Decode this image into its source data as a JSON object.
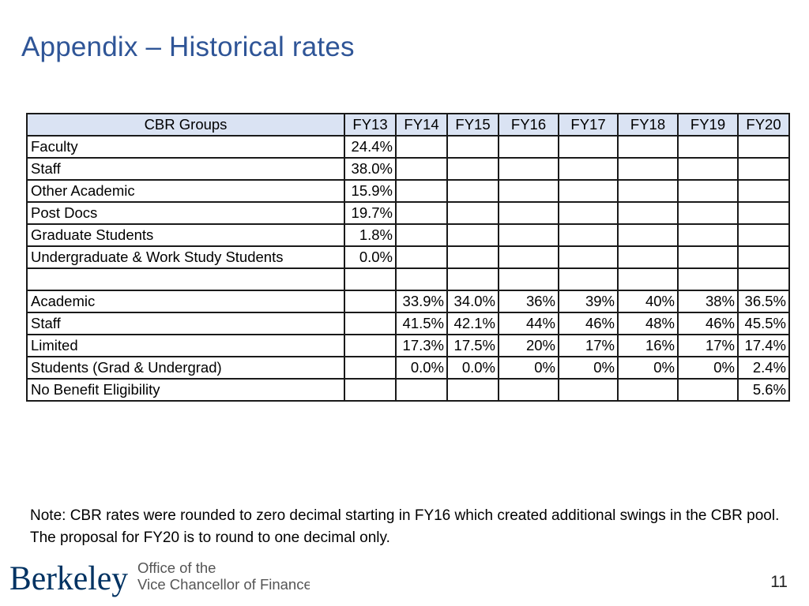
{
  "title": "Appendix – Historical rates",
  "table": {
    "headers": [
      "CBR Groups",
      "FY13",
      "FY14",
      "FY15",
      "FY16",
      "FY17",
      "FY18",
      "FY19",
      "FY20"
    ],
    "rows": [
      [
        "Faculty",
        "24.4%",
        "",
        "",
        "",
        "",
        "",
        "",
        ""
      ],
      [
        "Staff",
        "38.0%",
        "",
        "",
        "",
        "",
        "",
        "",
        ""
      ],
      [
        "Other Academic",
        "15.9%",
        "",
        "",
        "",
        "",
        "",
        "",
        ""
      ],
      [
        "Post Docs",
        "19.7%",
        "",
        "",
        "",
        "",
        "",
        "",
        ""
      ],
      [
        "Graduate Students",
        "1.8%",
        "",
        "",
        "",
        "",
        "",
        "",
        ""
      ],
      [
        "Undergraduate & Work Study Students",
        "0.0%",
        "",
        "",
        "",
        "",
        "",
        "",
        ""
      ],
      [
        "",
        "",
        "",
        "",
        "",
        "",
        "",
        "",
        ""
      ],
      [
        "Academic",
        "",
        "33.9%",
        "34.0%",
        "36%",
        "39%",
        "40%",
        "38%",
        "36.5%"
      ],
      [
        "Staff",
        "",
        "41.5%",
        "42.1%",
        "44%",
        "46%",
        "48%",
        "46%",
        "45.5%"
      ],
      [
        "Limited",
        "",
        "17.3%",
        "17.5%",
        "20%",
        "17%",
        "16%",
        "17%",
        "17.4%"
      ],
      [
        "Students (Grad & Undergrad)",
        "",
        "0.0%",
        "0.0%",
        "0%",
        "0%",
        "0%",
        "0%",
        "2.4%"
      ],
      [
        "No Benefit Eligibility",
        "",
        "",
        "",
        "",
        "",
        "",
        "",
        "5.6%"
      ]
    ]
  },
  "note": "Note: CBR rates were rounded to zero decimal starting in FY16 which created additional swings in the CBR pool. The proposal for FY20 is to round to one decimal only.",
  "logo": {
    "wordmark": "Berkeley",
    "line1": "Office of the",
    "line2": "Vice Chancellor of Finance"
  },
  "page_number": "11",
  "colors": {
    "title": "#2f5597",
    "header_fill": "#dae3f3",
    "logo_blue": "#003262",
    "logo_text": "#555555"
  }
}
